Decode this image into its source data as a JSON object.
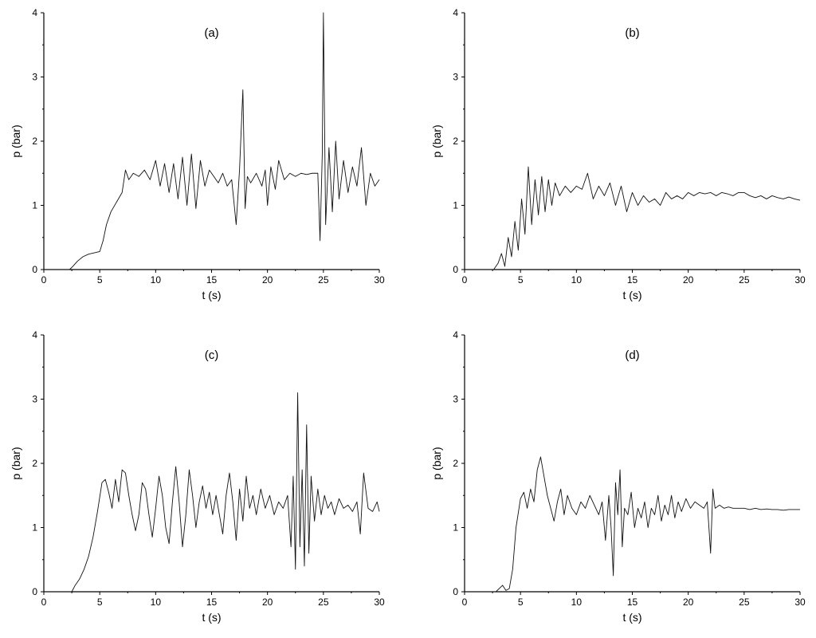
{
  "chart_data": [
    {
      "type": "line",
      "title": "(a)",
      "xlabel": "t (s)",
      "ylabel": "p (bar)",
      "xlim": [
        0,
        30
      ],
      "ylim": [
        0,
        4
      ],
      "xticks": [
        "0",
        "5",
        "10",
        "15",
        "20",
        "25",
        "30"
      ],
      "yticks": [
        "0",
        "1",
        "2",
        "3",
        "4"
      ],
      "grid": false,
      "series": [
        {
          "x": [
            0,
            2.3,
            2.6,
            3.0,
            3.5,
            4.0,
            4.5,
            5.0,
            5.3,
            5.6,
            6.0,
            6.5,
            7.0,
            7.3,
            7.6,
            8.0,
            8.5,
            9.0,
            9.5,
            10.0,
            10.4,
            10.8,
            11.2,
            11.6,
            12.0,
            12.4,
            12.8,
            13.2,
            13.6,
            14.0,
            14.4,
            14.8,
            15.2,
            15.6,
            16.0,
            16.4,
            16.8,
            17.2,
            17.5,
            17.8,
            18.0,
            18.2,
            18.5,
            19.0,
            19.5,
            19.8,
            20.0,
            20.3,
            20.7,
            21.0,
            21.5,
            22.0,
            22.5,
            23.0,
            23.5,
            24.0,
            24.5,
            24.7,
            24.9,
            25.0,
            25.2,
            25.5,
            25.8,
            26.1,
            26.4,
            26.8,
            27.2,
            27.6,
            28.0,
            28.4,
            28.8,
            29.2,
            29.6,
            30.0
          ],
          "y": [
            0,
            0,
            0.05,
            0.13,
            0.2,
            0.24,
            0.26,
            0.28,
            0.45,
            0.7,
            0.9,
            1.05,
            1.2,
            1.55,
            1.4,
            1.5,
            1.45,
            1.55,
            1.4,
            1.7,
            1.3,
            1.65,
            1.2,
            1.65,
            1.1,
            1.75,
            1.0,
            1.8,
            0.95,
            1.7,
            1.3,
            1.55,
            1.45,
            1.35,
            1.5,
            1.3,
            1.4,
            0.7,
            1.55,
            2.8,
            0.95,
            1.45,
            1.35,
            1.5,
            1.3,
            1.55,
            1.0,
            1.6,
            1.25,
            1.7,
            1.4,
            1.5,
            1.45,
            1.5,
            1.48,
            1.5,
            1.5,
            0.45,
            1.8,
            4.0,
            0.7,
            1.9,
            0.9,
            2.0,
            1.1,
            1.7,
            1.2,
            1.6,
            1.3,
            1.9,
            1.0,
            1.5,
            1.3,
            1.4
          ]
        }
      ]
    },
    {
      "type": "line",
      "title": "(b)",
      "xlabel": "t (s)",
      "ylabel": "p (bar)",
      "xlim": [
        0,
        30
      ],
      "ylim": [
        0,
        4
      ],
      "xticks": [
        "0",
        "5",
        "10",
        "15",
        "20",
        "25",
        "30"
      ],
      "yticks": [
        "0",
        "1",
        "2",
        "3",
        "4"
      ],
      "grid": false,
      "series": [
        {
          "x": [
            0,
            2.6,
            3.0,
            3.3,
            3.6,
            3.9,
            4.2,
            4.5,
            4.8,
            5.1,
            5.4,
            5.7,
            6.0,
            6.3,
            6.6,
            6.9,
            7.2,
            7.5,
            7.8,
            8.1,
            8.5,
            9.0,
            9.5,
            10.0,
            10.5,
            11.0,
            11.5,
            12.0,
            12.5,
            13.0,
            13.5,
            14.0,
            14.5,
            15.0,
            15.5,
            16.0,
            16.5,
            17.0,
            17.5,
            18.0,
            18.5,
            19.0,
            19.5,
            20.0,
            20.5,
            21.0,
            21.5,
            22.0,
            22.5,
            23.0,
            23.5,
            24.0,
            24.5,
            25.0,
            25.5,
            26.0,
            26.5,
            27.0,
            27.5,
            28.0,
            28.5,
            29.0,
            29.5,
            30.0
          ],
          "y": [
            0,
            0,
            0.1,
            0.25,
            0.05,
            0.5,
            0.2,
            0.75,
            0.3,
            1.1,
            0.55,
            1.6,
            0.7,
            1.4,
            0.85,
            1.45,
            0.9,
            1.4,
            1.0,
            1.35,
            1.15,
            1.3,
            1.2,
            1.3,
            1.25,
            1.5,
            1.1,
            1.3,
            1.15,
            1.35,
            1.0,
            1.3,
            0.9,
            1.2,
            1.0,
            1.15,
            1.05,
            1.1,
            1.0,
            1.2,
            1.1,
            1.15,
            1.1,
            1.2,
            1.15,
            1.2,
            1.18,
            1.2,
            1.15,
            1.2,
            1.18,
            1.15,
            1.2,
            1.2,
            1.15,
            1.12,
            1.15,
            1.1,
            1.15,
            1.12,
            1.1,
            1.13,
            1.1,
            1.08
          ]
        }
      ]
    },
    {
      "type": "line",
      "title": "(c)",
      "xlabel": "t (s)",
      "ylabel": "p (bar)",
      "xlim": [
        0,
        30
      ],
      "ylim": [
        0,
        4
      ],
      "xticks": [
        "0",
        "5",
        "10",
        "15",
        "20",
        "25",
        "30"
      ],
      "yticks": [
        "0",
        "1",
        "2",
        "3",
        "4"
      ],
      "grid": false,
      "series": [
        {
          "x": [
            0,
            2.5,
            2.8,
            3.2,
            3.6,
            4.0,
            4.4,
            4.8,
            5.2,
            5.5,
            5.8,
            6.1,
            6.4,
            6.7,
            7.0,
            7.3,
            7.6,
            7.9,
            8.2,
            8.5,
            8.8,
            9.1,
            9.4,
            9.7,
            10.0,
            10.3,
            10.6,
            10.9,
            11.2,
            11.5,
            11.8,
            12.1,
            12.4,
            12.7,
            13.0,
            13.3,
            13.6,
            13.9,
            14.2,
            14.5,
            14.8,
            15.1,
            15.4,
            15.7,
            16.0,
            16.3,
            16.6,
            16.9,
            17.2,
            17.5,
            17.8,
            18.1,
            18.4,
            18.7,
            19.0,
            19.4,
            19.8,
            20.2,
            20.6,
            21.0,
            21.4,
            21.8,
            22.1,
            22.3,
            22.5,
            22.7,
            22.9,
            23.1,
            23.3,
            23.5,
            23.7,
            23.9,
            24.2,
            24.5,
            24.8,
            25.1,
            25.4,
            25.7,
            26.0,
            26.4,
            26.8,
            27.2,
            27.6,
            28.0,
            28.3,
            28.6,
            29.0,
            29.4,
            29.8,
            30.0
          ],
          "y": [
            0,
            0,
            0.1,
            0.2,
            0.35,
            0.55,
            0.85,
            1.25,
            1.7,
            1.75,
            1.55,
            1.3,
            1.75,
            1.4,
            1.9,
            1.85,
            1.5,
            1.2,
            0.95,
            1.2,
            1.7,
            1.6,
            1.2,
            0.85,
            1.3,
            1.8,
            1.5,
            1.0,
            0.75,
            1.4,
            1.95,
            1.4,
            0.7,
            1.2,
            1.9,
            1.5,
            1.0,
            1.4,
            1.65,
            1.3,
            1.55,
            1.2,
            1.5,
            1.2,
            0.9,
            1.5,
            1.85,
            1.4,
            0.8,
            1.6,
            1.1,
            1.8,
            1.3,
            1.5,
            1.2,
            1.6,
            1.3,
            1.5,
            1.2,
            1.4,
            1.3,
            1.5,
            0.7,
            1.8,
            0.35,
            3.1,
            0.7,
            1.9,
            0.4,
            2.6,
            0.6,
            1.8,
            1.1,
            1.6,
            1.2,
            1.5,
            1.3,
            1.4,
            1.2,
            1.45,
            1.3,
            1.35,
            1.25,
            1.4,
            0.9,
            1.85,
            1.3,
            1.25,
            1.4,
            1.25
          ]
        }
      ]
    },
    {
      "type": "line",
      "title": "(d)",
      "xlabel": "t (s)",
      "ylabel": "p (bar)",
      "xlim": [
        0,
        30
      ],
      "ylim": [
        0,
        4
      ],
      "xticks": [
        "0",
        "5",
        "10",
        "15",
        "20",
        "25",
        "30"
      ],
      "yticks": [
        "0",
        "1",
        "2",
        "3",
        "4"
      ],
      "grid": false,
      "series": [
        {
          "x": [
            0,
            2.8,
            3.1,
            3.4,
            3.7,
            4.0,
            4.3,
            4.6,
            5.0,
            5.3,
            5.6,
            5.9,
            6.2,
            6.5,
            6.8,
            7.1,
            7.4,
            7.7,
            8.0,
            8.3,
            8.6,
            8.9,
            9.2,
            9.6,
            10.0,
            10.4,
            10.8,
            11.2,
            11.6,
            12.0,
            12.3,
            12.6,
            12.9,
            13.1,
            13.3,
            13.5,
            13.7,
            13.9,
            14.1,
            14.3,
            14.6,
            14.9,
            15.2,
            15.5,
            15.8,
            16.1,
            16.4,
            16.7,
            17.0,
            17.3,
            17.6,
            17.9,
            18.2,
            18.5,
            18.8,
            19.1,
            19.4,
            19.8,
            20.2,
            20.6,
            21.0,
            21.4,
            21.7,
            22.0,
            22.2,
            22.4,
            22.8,
            23.2,
            23.6,
            24.0,
            24.5,
            25.0,
            25.5,
            26.0,
            26.5,
            27.0,
            27.5,
            28.0,
            28.5,
            29.0,
            29.5,
            30.0
          ],
          "y": [
            0,
            0,
            0.05,
            0.1,
            0.02,
            0.05,
            0.35,
            1.0,
            1.45,
            1.55,
            1.3,
            1.6,
            1.4,
            1.9,
            2.1,
            1.8,
            1.5,
            1.3,
            1.1,
            1.4,
            1.6,
            1.2,
            1.5,
            1.3,
            1.2,
            1.4,
            1.3,
            1.5,
            1.35,
            1.2,
            1.4,
            0.8,
            1.5,
            1.0,
            0.25,
            1.7,
            1.2,
            1.9,
            0.7,
            1.3,
            1.2,
            1.55,
            1.0,
            1.3,
            1.15,
            1.4,
            1.0,
            1.3,
            1.2,
            1.5,
            1.1,
            1.35,
            1.2,
            1.5,
            1.15,
            1.4,
            1.25,
            1.45,
            1.3,
            1.4,
            1.35,
            1.3,
            1.4,
            0.6,
            1.6,
            1.3,
            1.35,
            1.3,
            1.32,
            1.3,
            1.3,
            1.3,
            1.28,
            1.3,
            1.28,
            1.29,
            1.28,
            1.28,
            1.27,
            1.28,
            1.28,
            1.28
          ]
        }
      ]
    }
  ]
}
